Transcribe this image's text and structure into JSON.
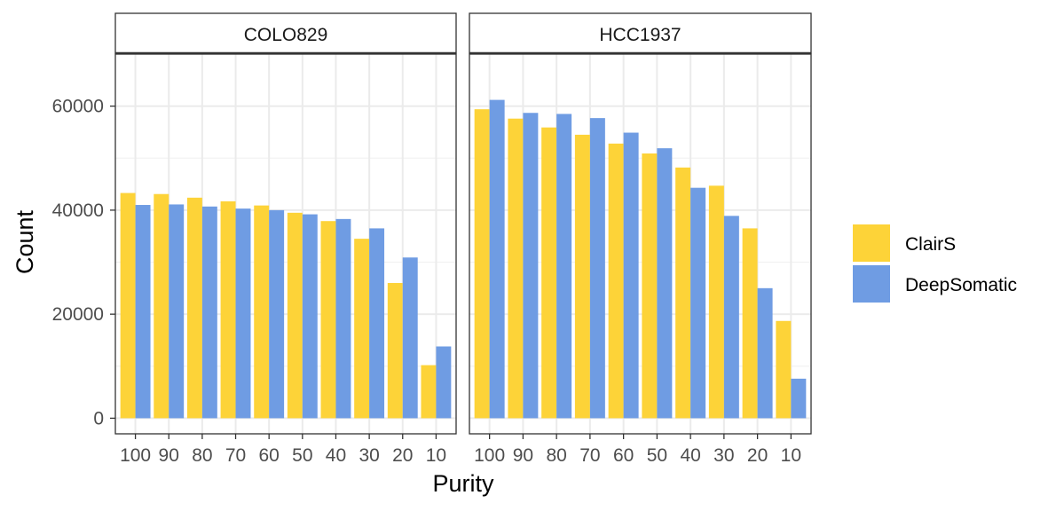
{
  "chart_data": {
    "type": "bar",
    "xlabel": "Purity",
    "ylabel": "Count",
    "ylim": [
      -3000,
      70000
    ],
    "y_ticks": [
      0,
      20000,
      40000,
      60000
    ],
    "y_tick_labels": [
      "0",
      "20000",
      "40000",
      "60000"
    ],
    "categories": [
      "100",
      "90",
      "80",
      "70",
      "60",
      "50",
      "40",
      "30",
      "20",
      "10"
    ],
    "grid": true,
    "legend": {
      "position": "right",
      "entries": [
        {
          "name": "ClairS",
          "color": "#FDD338"
        },
        {
          "name": "DeepSomatic",
          "color": "#6F9CE3"
        }
      ]
    },
    "facets": [
      {
        "label": "COLO829",
        "series": [
          {
            "name": "ClairS",
            "values": [
              43300,
              43100,
              42400,
              41700,
              40900,
              39500,
              37900,
              34500,
              26000,
              10200
            ]
          },
          {
            "name": "DeepSomatic",
            "values": [
              41000,
              41100,
              40700,
              40300,
              40000,
              39200,
              38300,
              36500,
              30900,
              13800
            ]
          }
        ]
      },
      {
        "label": "HCC1937",
        "series": [
          {
            "name": "ClairS",
            "values": [
              59400,
              57600,
              55900,
              54500,
              52800,
              50900,
              48200,
              44700,
              36500,
              18700
            ]
          },
          {
            "name": "DeepSomatic",
            "values": [
              61200,
              58700,
              58500,
              57700,
              54900,
              51900,
              44300,
              38900,
              25000,
              7600
            ]
          }
        ]
      }
    ]
  }
}
